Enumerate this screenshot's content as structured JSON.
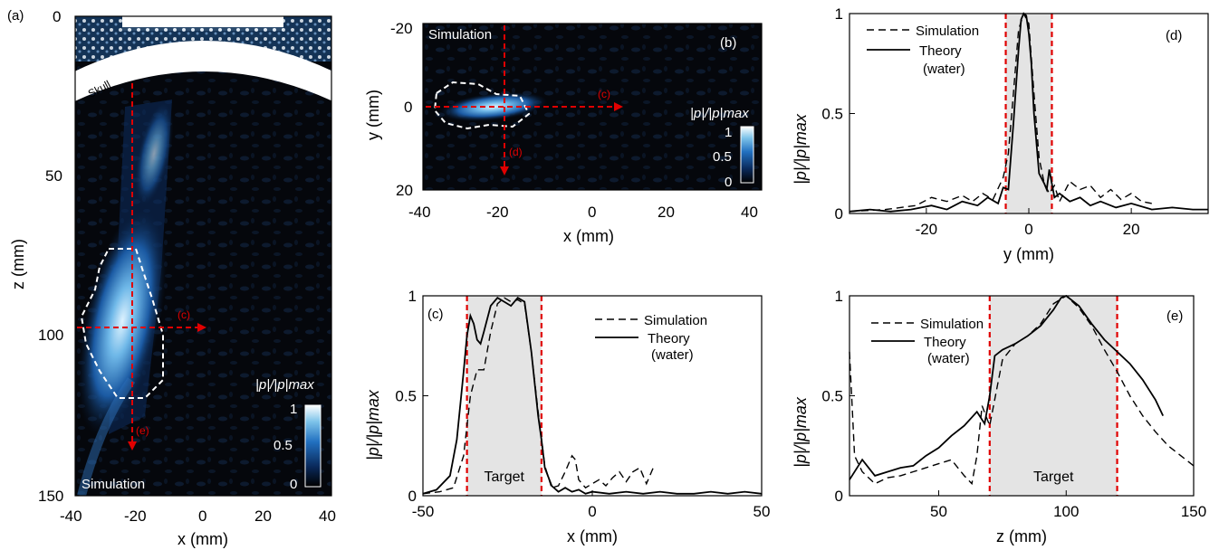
{
  "figure": {
    "panels": [
      {
        "label": "(a)",
        "annotation": "Simulation",
        "skull_label": "Skull",
        "colorbar": {
          "label": "|p|/|p|max",
          "ticks": [
            "1",
            "0.5",
            "0"
          ]
        },
        "arrow_labels": [
          "(c)",
          "(e)"
        ],
        "xlabel": "x (mm)",
        "ylabel": "z (mm)",
        "xticks": [
          "-40",
          "-20",
          "0",
          "20",
          "40"
        ],
        "yticks": [
          "0",
          "50",
          "100",
          "150"
        ]
      },
      {
        "label": "(b)",
        "annotation": "Simulation",
        "colorbar": {
          "label": "|p|/|p|max",
          "ticks": [
            "1",
            "0.5",
            "0"
          ]
        },
        "arrow_labels": [
          "(c)",
          "(d)"
        ],
        "xlabel": "x (mm)",
        "ylabel": "y (mm)",
        "xticks": [
          "-40",
          "-20",
          "0",
          "20",
          "40"
        ],
        "yticks": [
          "-20",
          "0",
          "20"
        ]
      }
    ],
    "colormap": [
      "#000000",
      "#0a2a5c",
      "#2270c0",
      "#7ec4ea",
      "#ffffff"
    ]
  },
  "chart_data": [
    {
      "type": "line",
      "panel": "(c)",
      "xlabel": "x (mm)",
      "ylabel": "|p|/|p|max",
      "xlim": [
        -50,
        50
      ],
      "ylim": [
        0,
        1
      ],
      "xticks": [
        "-50",
        "0",
        "50"
      ],
      "yticks": [
        "0",
        "0.5",
        "1"
      ],
      "target_region": [
        -37,
        -15
      ],
      "target_label": "Target",
      "legend": [
        "Simulation",
        "Theory (water)"
      ],
      "legend_position": "top-right",
      "series": [
        {
          "name": "Simulation",
          "style": "dashed",
          "x": [
            -50,
            -45,
            -41,
            -38,
            -36,
            -34,
            -32,
            -30,
            -28,
            -26,
            -24,
            -22,
            -20,
            -18,
            -16,
            -14,
            -12,
            -10,
            -8,
            -6,
            -5,
            -4,
            -2,
            0,
            2,
            4,
            6,
            8,
            10,
            12,
            14,
            16,
            18
          ],
          "y": [
            0.01,
            0.02,
            0.04,
            0.2,
            0.5,
            0.63,
            0.63,
            0.82,
            0.96,
            0.99,
            0.97,
            0.98,
            0.96,
            0.72,
            0.42,
            0.15,
            0.04,
            0.05,
            0.12,
            0.2,
            0.18,
            0.08,
            0.04,
            0.06,
            0.08,
            0.05,
            0.09,
            0.12,
            0.07,
            0.12,
            0.14,
            0.06,
            0.14
          ]
        },
        {
          "name": "Theory (water)",
          "style": "solid",
          "x": [
            -50,
            -46,
            -42,
            -40,
            -38,
            -37,
            -36,
            -35,
            -34,
            -33,
            -32,
            -30,
            -28,
            -26,
            -24,
            -22,
            -20,
            -18,
            -16,
            -15,
            -14,
            -12,
            -10,
            -8,
            -6,
            -4,
            -2,
            0,
            5,
            10,
            15,
            20,
            25,
            30,
            35,
            40,
            45,
            50
          ],
          "y": [
            0.01,
            0.03,
            0.1,
            0.28,
            0.62,
            0.8,
            0.9,
            0.86,
            0.78,
            0.76,
            0.82,
            0.95,
            0.99,
            0.97,
            0.95,
            0.99,
            0.97,
            0.72,
            0.4,
            0.28,
            0.14,
            0.05,
            0.02,
            0.04,
            0.02,
            0.03,
            0.01,
            0.02,
            0.01,
            0.02,
            0.01,
            0.02,
            0.01,
            0.01,
            0.02,
            0.01,
            0.02,
            0.01
          ]
        }
      ]
    },
    {
      "type": "line",
      "panel": "(d)",
      "xlabel": "y (mm)",
      "ylabel": "|p|/|p|max",
      "xlim": [
        -35,
        35
      ],
      "ylim": [
        0,
        1
      ],
      "xticks": [
        "-20",
        "0",
        "20"
      ],
      "yticks": [
        "0",
        "0.5",
        "1"
      ],
      "target_region": [
        -4.5,
        4.5
      ],
      "legend": [
        "Simulation",
        "Theory (water)"
      ],
      "legend_position": "top-left",
      "series": [
        {
          "name": "Simulation",
          "style": "dashed",
          "x": [
            -35,
            -28,
            -22,
            -19,
            -16,
            -13,
            -11,
            -9,
            -7,
            -5,
            -4,
            -3,
            -2,
            -1,
            0,
            1,
            2,
            3,
            4,
            5,
            6,
            8,
            10,
            12,
            14,
            16,
            18,
            20,
            22,
            24
          ],
          "y": [
            0.01,
            0.02,
            0.04,
            0.08,
            0.06,
            0.09,
            0.06,
            0.1,
            0.07,
            0.18,
            0.3,
            0.6,
            0.92,
            1.0,
            0.95,
            0.6,
            0.28,
            0.15,
            0.1,
            0.14,
            0.06,
            0.16,
            0.12,
            0.14,
            0.08,
            0.12,
            0.07,
            0.1,
            0.06,
            0.05
          ]
        },
        {
          "name": "Theory (water)",
          "style": "solid",
          "x": [
            -35,
            -31,
            -27,
            -23,
            -19,
            -16,
            -13,
            -10,
            -8,
            -6,
            -5,
            -4,
            -3,
            -2,
            -1.5,
            -1,
            -0.5,
            0,
            0.5,
            1,
            2,
            3,
            3.5,
            4,
            5,
            6,
            8,
            10,
            12,
            14,
            17,
            20,
            24,
            28,
            32,
            35
          ],
          "y": [
            0.01,
            0.02,
            0.01,
            0.02,
            0.04,
            0.02,
            0.06,
            0.04,
            0.08,
            0.05,
            0.13,
            0.12,
            0.45,
            0.82,
            0.97,
            1.0,
            0.99,
            0.9,
            0.75,
            0.5,
            0.2,
            0.15,
            0.12,
            0.22,
            0.08,
            0.1,
            0.06,
            0.08,
            0.04,
            0.06,
            0.03,
            0.05,
            0.02,
            0.03,
            0.02,
            0.02
          ]
        }
      ]
    },
    {
      "type": "line",
      "panel": "(e)",
      "xlabel": "z (mm)",
      "ylabel": "|p|/|p|max",
      "xlim": [
        15,
        150
      ],
      "ylim": [
        0,
        1
      ],
      "xticks": [
        "50",
        "100",
        "150"
      ],
      "yticks": [
        "0",
        "0.5",
        "1"
      ],
      "target_region": [
        70,
        120
      ],
      "target_label": "Target",
      "legend": [
        "Simulation",
        "Theory (water)"
      ],
      "legend_position": "top-left",
      "series": [
        {
          "name": "Simulation",
          "style": "dashed",
          "x": [
            15,
            17,
            20,
            25,
            30,
            35,
            40,
            45,
            50,
            55,
            60,
            63,
            65,
            67,
            70,
            73,
            75,
            80,
            85,
            90,
            95,
            100,
            105,
            110,
            115,
            120,
            125,
            130,
            135,
            140,
            145,
            150
          ],
          "y": [
            0.72,
            0.2,
            0.12,
            0.06,
            0.09,
            0.1,
            0.12,
            0.14,
            0.16,
            0.18,
            0.1,
            0.06,
            0.2,
            0.45,
            0.35,
            0.55,
            0.68,
            0.76,
            0.8,
            0.86,
            0.96,
            1.0,
            0.94,
            0.85,
            0.73,
            0.62,
            0.5,
            0.4,
            0.32,
            0.25,
            0.2,
            0.15
          ]
        },
        {
          "name": "Theory (water)",
          "style": "solid",
          "x": [
            15,
            20,
            25,
            30,
            35,
            40,
            45,
            50,
            55,
            60,
            65,
            68,
            70,
            72,
            75,
            80,
            85,
            90,
            95,
            98,
            100,
            105,
            110,
            115,
            120,
            125,
            130,
            135,
            138
          ],
          "y": [
            0.08,
            0.18,
            0.1,
            0.12,
            0.14,
            0.15,
            0.2,
            0.24,
            0.3,
            0.35,
            0.42,
            0.36,
            0.5,
            0.7,
            0.73,
            0.76,
            0.8,
            0.85,
            0.93,
            0.99,
            1.0,
            0.95,
            0.86,
            0.78,
            0.72,
            0.66,
            0.58,
            0.48,
            0.4
          ]
        }
      ]
    }
  ]
}
